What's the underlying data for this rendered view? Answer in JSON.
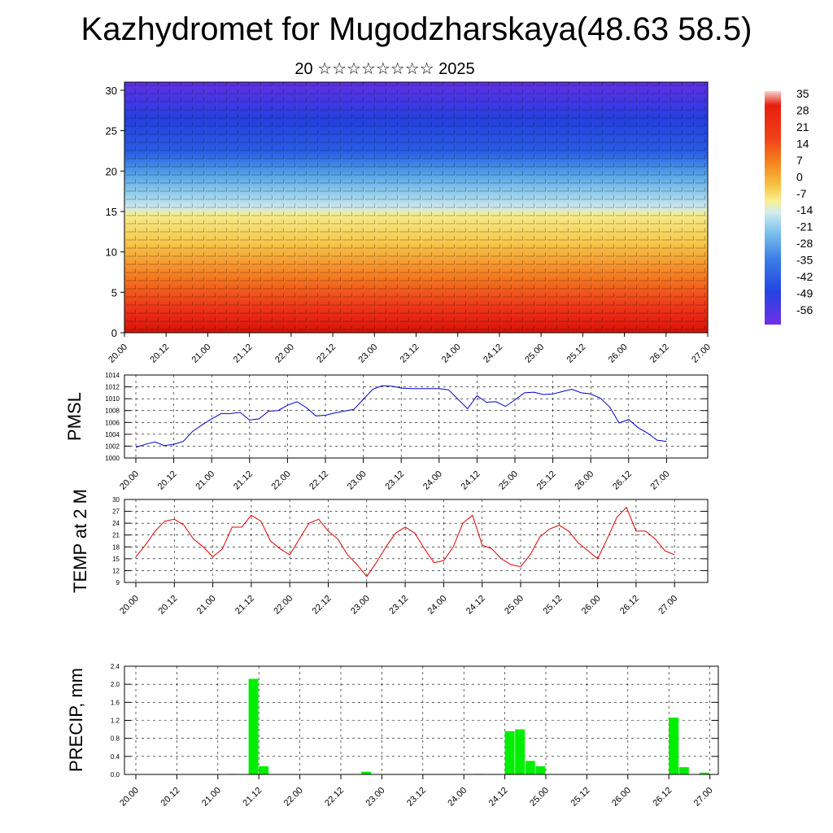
{
  "header": {
    "title": "Kazhydromet for Mugodzharskaya(48.63 58.5)",
    "subtitle": "20 ☆☆☆☆☆☆☆☆ 2025"
  },
  "time_ticks": [
    "20.00",
    "20.12",
    "21.00",
    "21.12",
    "22.00",
    "22.12",
    "23.00",
    "23.12",
    "24.00",
    "24.12",
    "25.00",
    "25.12",
    "26.00",
    "26.12",
    "27.00"
  ],
  "chart_data": [
    {
      "type": "heatmap",
      "name": "vertical temperature/wind cross-section",
      "x_ticks": [
        "20.00",
        "20.12",
        "21.00",
        "21.12",
        "22.00",
        "22.12",
        "23.00",
        "23.12",
        "24.00",
        "24.12",
        "25.00",
        "25.12",
        "26.00",
        "26.12",
        "27.00"
      ],
      "y_ticks": [
        0,
        5,
        10,
        15,
        20,
        25,
        30
      ],
      "ylim": [
        0,
        31
      ],
      "colorbar_labels": [
        "35",
        "28",
        "21",
        "14",
        "7",
        "0",
        "-7",
        "-14",
        "-21",
        "-28",
        "-35",
        "-42",
        "-49",
        "-56"
      ],
      "colors": {
        "warm": "#e81e0e",
        "orange": "#f7a21e",
        "yellow": "#f7e65a",
        "light_blue": "#a8d8ee",
        "blue": "#2250e0",
        "violet": "#6a2ee6"
      }
    },
    {
      "type": "line",
      "ylabel": "PMSL",
      "ylim": [
        1000,
        1014
      ],
      "y_ticks": [
        1000,
        1002,
        1004,
        1006,
        1008,
        1010,
        1012,
        1014
      ],
      "color": "#0000cc",
      "values": [
        1001.8,
        1002.3,
        1002.7,
        1002.1,
        1002.3,
        1002.8,
        1004.5,
        1005.6,
        1006.6,
        1007.5,
        1007.5,
        1007.7,
        1006.4,
        1006.6,
        1007.9,
        1008.0,
        1008.9,
        1009.5,
        1008.5,
        1007.1,
        1007.2,
        1007.6,
        1007.9,
        1008.2,
        1009.9,
        1011.6,
        1012.2,
        1012.1,
        1011.8,
        1011.7,
        1011.7,
        1011.7,
        1011.7,
        1011.5,
        1009.9,
        1008.3,
        1010.5,
        1009.4,
        1009.5,
        1008.7,
        1009.8,
        1011.0,
        1011.1,
        1010.7,
        1010.8,
        1011.2,
        1011.6,
        1011.0,
        1010.8,
        1010.1,
        1008.6,
        1005.9,
        1006.5,
        1005.1,
        1004.2,
        1003.0,
        1002.8
      ]
    },
    {
      "type": "line",
      "ylabel": "TEMP at 2 M",
      "ylim": [
        9,
        30
      ],
      "y_ticks": [
        9,
        12,
        15,
        18,
        21,
        24,
        27,
        30
      ],
      "color": "#e00000",
      "values": [
        15.5,
        18.5,
        22.0,
        24.5,
        25.0,
        23.5,
        20.0,
        18.0,
        15.5,
        17.5,
        23.0,
        23.0,
        26.0,
        24.5,
        19.5,
        17.5,
        16.0,
        20.0,
        24.0,
        25.0,
        22.0,
        20.0,
        16.0,
        13.5,
        10.5,
        14.0,
        18.0,
        21.5,
        23.0,
        21.5,
        17.5,
        14.0,
        14.5,
        18.0,
        24.0,
        26.0,
        18.5,
        17.5,
        15.0,
        13.5,
        13.0,
        16.0,
        20.5,
        22.5,
        23.5,
        22.0,
        19.0,
        17.0,
        15.0,
        20.0,
        25.5,
        28.0,
        22.0,
        22.0,
        20.0,
        17.0,
        16.0
      ]
    },
    {
      "type": "bar",
      "ylabel": "PRECIP, mm",
      "ylim": [
        0.0,
        2.4
      ],
      "y_ticks": [
        "0.0",
        "0.4",
        "0.8",
        "1.2",
        "1.6",
        "2.0",
        "2.4"
      ],
      "color": "#00ee00",
      "values": [
        0,
        0,
        0,
        0,
        0,
        0,
        0,
        0,
        0,
        0.01,
        0,
        2.12,
        0.18,
        0,
        0,
        0,
        0,
        0,
        0,
        0,
        0,
        0,
        0.06,
        0,
        0,
        0,
        0,
        0,
        0,
        0,
        0,
        0,
        0,
        0.01,
        0,
        0,
        0.96,
        1.0,
        0.3,
        0.18,
        0,
        0,
        0,
        0,
        0,
        0,
        0,
        0,
        0,
        0,
        0,
        0,
        1.26,
        0.16,
        0,
        0.04
      ]
    }
  ]
}
